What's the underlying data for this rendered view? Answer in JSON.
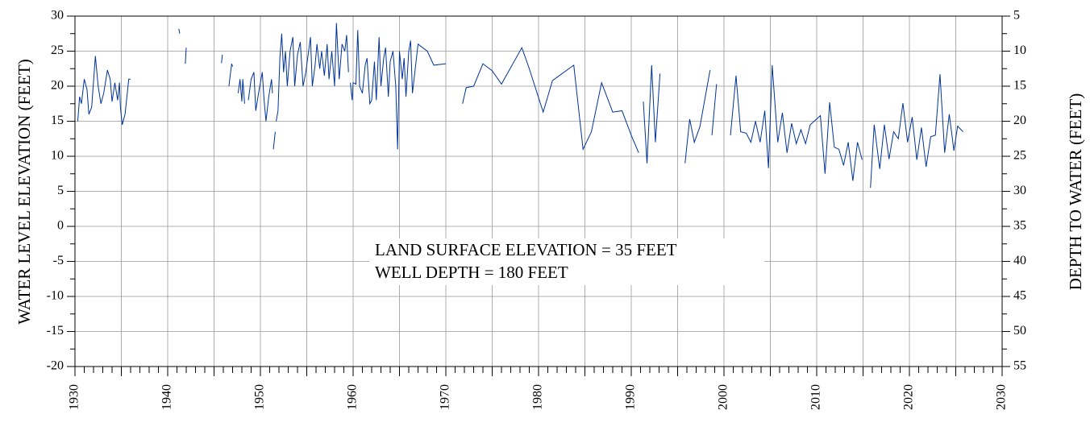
{
  "chart_data": {
    "type": "line",
    "ylabel": "WATER LEVEL ELEVATION (FEET)",
    "y2label": "DEPTH TO WATER (FEET)",
    "annotations": [
      "LAND SURFACE ELEVATION = 35 FEET",
      "WELL DEPTH = 180 FEET"
    ],
    "xlim": [
      1930,
      2030
    ],
    "xticks": [
      1930,
      1940,
      1950,
      1960,
      1970,
      1980,
      1990,
      2000,
      2010,
      2020,
      2030
    ],
    "ylim": [
      -20,
      30
    ],
    "yticks": [
      -20,
      -15,
      -10,
      -5,
      0,
      5,
      10,
      15,
      20,
      25,
      30
    ],
    "y2lim": [
      55,
      5
    ],
    "y2ticks": [
      5,
      10,
      15,
      20,
      25,
      30,
      35,
      40,
      45,
      50,
      55
    ],
    "grid": true,
    "series": [
      {
        "color": "#003399",
        "x": [
          1930.3,
          1930.5,
          1930.7,
          1931,
          1931.3,
          1931.5,
          1931.8,
          1932.2,
          1932.5,
          1932.8,
          1933.1,
          1933.5,
          1933.8,
          1934,
          1934.3,
          1934.6,
          1934.8,
          1934.9,
          1935.1,
          1935.4,
          1935.8,
          1936,
          null,
          1941.2,
          1941.3,
          null,
          1941.9,
          1942,
          null,
          1945.8,
          1945.9,
          null,
          1946.6,
          1946.9,
          1947,
          null,
          1947.6,
          1947.8,
          1948,
          1948.1,
          1948.3,
          null,
          1948.7,
          1949,
          1949.3,
          1949.5,
          1949.8,
          1950.2,
          1950.4,
          1950.6,
          1950.9,
          1951.2,
          1951.3,
          null,
          1951.4,
          1951.6,
          null,
          1951.7,
          1951.9,
          1952.1,
          1952.3,
          1952.5,
          1952.7,
          1952.9,
          1953.2,
          1953.5,
          1953.7,
          1954,
          1954.3,
          1954.6,
          1954.9,
          1955.1,
          1955.4,
          1955.6,
          1955.9,
          1956.1,
          1956.4,
          1956.6,
          1956.9,
          1957.2,
          1957.4,
          1957.7,
          1958,
          1958.2,
          1958.5,
          1958.8,
          1959.1,
          1959.3,
          1959.5,
          null,
          1959.7,
          1959.9,
          1960,
          1960.3,
          1960.5,
          1960.7,
          1961,
          1961.3,
          1961.5,
          1961.8,
          1962,
          1962.3,
          1962.5,
          1962.8,
          1963,
          1963.3,
          1963.5,
          1963.8,
          1964,
          1964.3,
          1964.6,
          1964.8,
          1965,
          1965.3,
          1965.5,
          1965.7,
          1966,
          1966.2,
          1966.4,
          1967,
          1968,
          1968.7,
          1970,
          null,
          1971.8,
          1972.2,
          1973,
          1974,
          1975,
          1976,
          1978.2,
          1979,
          1980.5,
          1981.5,
          1983.8,
          1984.8,
          1985.7,
          1986.8,
          1988,
          1989,
          1990,
          1990.8,
          null,
          1991.3,
          1991.7,
          1992.2,
          1992.6,
          1993.1,
          null,
          1995.8,
          1996.3,
          1996.8,
          1997.4,
          1998.5,
          null,
          1998.7,
          1999.2,
          null,
          2000.7,
          2001.3,
          2001.8,
          2002.4,
          2002.9,
          2003.4,
          2003.9,
          2004.4,
          2004.8,
          2005.2,
          2005.8,
          2006.3,
          2006.8,
          2007.3,
          2007.8,
          2008.3,
          2008.8,
          2009.3,
          2010.4,
          2010.9,
          2011.4,
          2011.9,
          2012.4,
          2012.9,
          2013.4,
          2013.9,
          2014.4,
          2014.9,
          null,
          2015.8,
          2016.2,
          2016.8,
          2017.3,
          2017.8,
          2018.3,
          2018.8,
          2019.3,
          2019.8,
          2020.3,
          2020.8,
          2021.3,
          2021.8,
          2022.3,
          2022.8,
          2023.3,
          2023.8,
          2024.3,
          2024.8,
          2025.2,
          2025.8
        ],
        "values": [
          15,
          18.5,
          17.5,
          21,
          19.5,
          16,
          17,
          24.3,
          20,
          17.5,
          19,
          22.3,
          21,
          17.8,
          20.5,
          18,
          20.5,
          17,
          14.5,
          16,
          21,
          21,
          null,
          28.2,
          27.5,
          null,
          23.2,
          25.5,
          null,
          23.3,
          24.5,
          null,
          20,
          23.2,
          22.8,
          null,
          19,
          21,
          17.8,
          21,
          17.5,
          null,
          18,
          21,
          22,
          16.5,
          19,
          22,
          18,
          15,
          18.5,
          21,
          19,
          null,
          11,
          13.5,
          null,
          15,
          16.5,
          24,
          27.5,
          22,
          25,
          20,
          25,
          27,
          20,
          24.5,
          26.3,
          20,
          22,
          24,
          27,
          20,
          23,
          26,
          22.5,
          25,
          21.5,
          26,
          21,
          25,
          20,
          29,
          21,
          26,
          25,
          27.3,
          22,
          null,
          20.5,
          18,
          20.5,
          20.3,
          28,
          20,
          19,
          23,
          24,
          17.5,
          18,
          23.5,
          18,
          27,
          20,
          24,
          25.5,
          18.5,
          23.5,
          25,
          20,
          11,
          25,
          21,
          24,
          18.5,
          25,
          26.5,
          19,
          26,
          25,
          23,
          23.2,
          null,
          17.5,
          19.8,
          20,
          23.2,
          22.2,
          20.3,
          25.5,
          22.5,
          16.3,
          20.8,
          23,
          11,
          13.5,
          20.5,
          16.3,
          16.5,
          13,
          10.5,
          null,
          17.8,
          9,
          23,
          12,
          21.8,
          null,
          9,
          15.3,
          12,
          14.2,
          22.3,
          null,
          13,
          20.3,
          null,
          13,
          21.5,
          13.5,
          13.3,
          12,
          15,
          12,
          16.5,
          8.3,
          23,
          12,
          16.2,
          10.5,
          14.7,
          11.8,
          13.8,
          11.8,
          14.5,
          15.8,
          7.5,
          17.7,
          11.3,
          11,
          8.7,
          12,
          6.5,
          12,
          9.5,
          null,
          5.5,
          14.5,
          8.2,
          14.5,
          9.6,
          13.5,
          12.5,
          17.6,
          12,
          15.6,
          9.5,
          14.1,
          8.5,
          12.8,
          13,
          21.7,
          10.5,
          16,
          10.8,
          14.3,
          13.5
        ]
      }
    ]
  }
}
